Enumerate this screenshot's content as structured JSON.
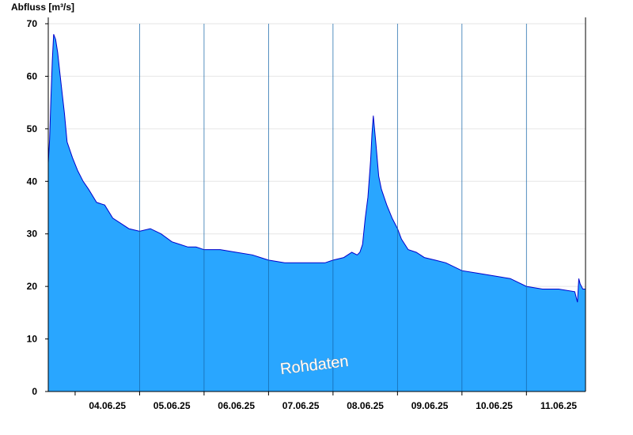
{
  "chart_data": {
    "type": "area",
    "ylabel": "Abfluss [m³/s]",
    "xlabel": "",
    "ylim": [
      0,
      70
    ],
    "yticks": [
      0,
      10,
      20,
      30,
      40,
      50,
      60,
      70
    ],
    "xlim": [
      "2025-06-03T14:00",
      "2025-06-11T22:00"
    ],
    "day_labels": [
      "04.06.25",
      "05.06.25",
      "06.06.25",
      "07.06.25",
      "08.06.25",
      "09.06.25",
      "10.06.25",
      "11.06.25"
    ],
    "grid": "horizontal",
    "fill_color": "#29A6FF",
    "line_color": "#0000CC",
    "annotation": "Rohdaten",
    "series": [
      {
        "x": [
          "2025-06-03T14:00",
          "2025-06-03T14:30",
          "2025-06-03T15:00",
          "2025-06-03T15:30",
          "2025-06-03T16:00",
          "2025-06-03T16:45",
          "2025-06-03T17:30",
          "2025-06-03T18:15",
          "2025-06-03T19:00",
          "2025-06-03T20:00",
          "2025-06-03T21:00",
          "2025-06-03T22:00",
          "2025-06-03T23:00",
          "2025-06-04T01:00",
          "2025-06-04T03:00",
          "2025-06-04T05:00",
          "2025-06-04T08:00",
          "2025-06-04T11:00",
          "2025-06-04T14:00",
          "2025-06-04T17:00",
          "2025-06-04T20:00",
          "2025-06-05T00:00",
          "2025-06-05T04:00",
          "2025-06-05T08:00",
          "2025-06-05T12:00",
          "2025-06-05T15:00",
          "2025-06-05T18:00",
          "2025-06-05T21:00",
          "2025-06-06T00:00",
          "2025-06-06T06:00",
          "2025-06-06T12:00",
          "2025-06-06T18:00",
          "2025-06-06T21:00",
          "2025-06-07T00:00",
          "2025-06-07T06:00",
          "2025-06-07T12:00",
          "2025-06-07T18:00",
          "2025-06-07T21:00",
          "2025-06-08T00:00",
          "2025-06-08T04:00",
          "2025-06-08T07:00",
          "2025-06-08T09:00",
          "2025-06-08T10:00",
          "2025-06-08T11:00",
          "2025-06-08T12:00",
          "2025-06-08T13:00",
          "2025-06-08T14:00",
          "2025-06-08T14:30",
          "2025-06-08T15:00",
          "2025-06-08T16:00",
          "2025-06-08T17:00",
          "2025-06-08T18:00",
          "2025-06-08T20:00",
          "2025-06-08T22:00",
          "2025-06-09T00:00",
          "2025-06-09T01:30",
          "2025-06-09T04:00",
          "2025-06-09T07:00",
          "2025-06-09T10:00",
          "2025-06-09T14:00",
          "2025-06-09T18:00",
          "2025-06-10T00:00",
          "2025-06-10T06:00",
          "2025-06-10T12:00",
          "2025-06-10T18:00",
          "2025-06-11T00:00",
          "2025-06-11T06:00",
          "2025-06-11T12:00",
          "2025-06-11T18:00",
          "2025-06-11T19:00",
          "2025-06-11T19:30",
          "2025-06-11T20:00",
          "2025-06-11T21:00",
          "2025-06-11T22:00"
        ],
        "y": [
          43.5,
          48,
          56,
          63,
          68,
          67,
          64.5,
          61,
          57.5,
          53,
          47.5,
          46,
          44.5,
          42,
          40,
          38.5,
          36,
          35.5,
          33,
          32,
          31,
          30.5,
          31,
          30,
          28.5,
          28,
          27.5,
          27.5,
          27,
          27,
          26.5,
          26,
          25.5,
          25,
          24.5,
          24.5,
          24.5,
          24.5,
          25,
          25.5,
          26.5,
          26,
          26.5,
          28,
          33,
          37,
          44,
          49,
          52.5,
          47,
          41,
          38.5,
          35.5,
          33,
          31,
          29,
          27,
          26.5,
          25.5,
          25,
          24.5,
          23,
          22.5,
          22,
          21.5,
          20,
          19.5,
          19.5,
          19,
          17,
          21.5,
          20.5,
          19.5,
          19.5
        ]
      }
    ]
  }
}
